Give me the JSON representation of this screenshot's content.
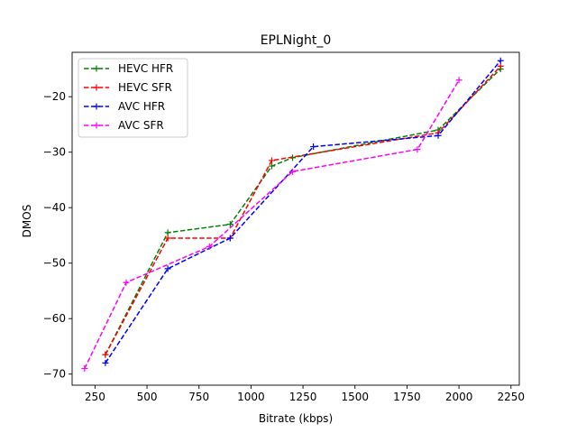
{
  "chart_data": {
    "type": "line",
    "title": "EPLNight_0",
    "xlabel": "Bitrate (kbps)",
    "ylabel": "DMOS",
    "xlim": [
      140,
      2290
    ],
    "ylim": [
      -72,
      -12
    ],
    "xticks": [
      250,
      500,
      750,
      1000,
      1250,
      1500,
      1750,
      2000,
      2250
    ],
    "yticks": [
      -70,
      -60,
      -50,
      -40,
      -30,
      -20
    ],
    "grid": false,
    "legend_position": "upper-left",
    "series": [
      {
        "name": "HEVC HFR",
        "color": "#008000",
        "x": [
          300,
          600,
          900,
          1100,
          1200,
          1900,
          2200
        ],
        "y": [
          -66.5,
          -44.5,
          -43.0,
          -32.5,
          -31.0,
          -26.0,
          -15.0
        ]
      },
      {
        "name": "HEVC SFR",
        "color": "#ff0000",
        "x": [
          300,
          600,
          900,
          1100,
          1900,
          2200
        ],
        "y": [
          -66.5,
          -45.5,
          -45.5,
          -31.5,
          -26.5,
          -14.5
        ]
      },
      {
        "name": "AVC HFR",
        "color": "#0000ff",
        "x": [
          300,
          600,
          900,
          1300,
          1900,
          2200
        ],
        "y": [
          -68.0,
          -51.0,
          -45.5,
          -29.0,
          -27.0,
          -13.5
        ]
      },
      {
        "name": "AVC SFR",
        "color": "#ff00ff",
        "x": [
          200,
          400,
          800,
          1200,
          1800,
          2000
        ],
        "y": [
          -69.0,
          -53.5,
          -47.0,
          -33.5,
          -29.5,
          -17.0
        ]
      }
    ]
  }
}
